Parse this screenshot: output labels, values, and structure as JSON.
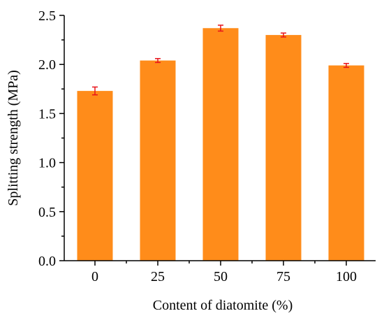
{
  "chart_data": {
    "type": "bar",
    "categories": [
      "0",
      "25",
      "50",
      "75",
      "100"
    ],
    "values": [
      1.73,
      2.04,
      2.37,
      2.3,
      1.99
    ],
    "errors": [
      0.04,
      0.02,
      0.03,
      0.02,
      0.02
    ],
    "xlabel": "Content of diatomite (%)",
    "ylabel": "Splitting strength (MPa)",
    "ylim": [
      0,
      2.5
    ],
    "yticks": [
      0,
      0.5,
      1.0,
      1.5,
      2.0,
      2.5
    ],
    "ytick_labels": [
      "0.0",
      "0.5",
      "1.0",
      "1.5",
      "2.0",
      "2.5"
    ],
    "grid": false,
    "colors": {
      "bar": "#ff8c1a",
      "error_bar": "#e8141b",
      "axis": "#000000"
    }
  }
}
